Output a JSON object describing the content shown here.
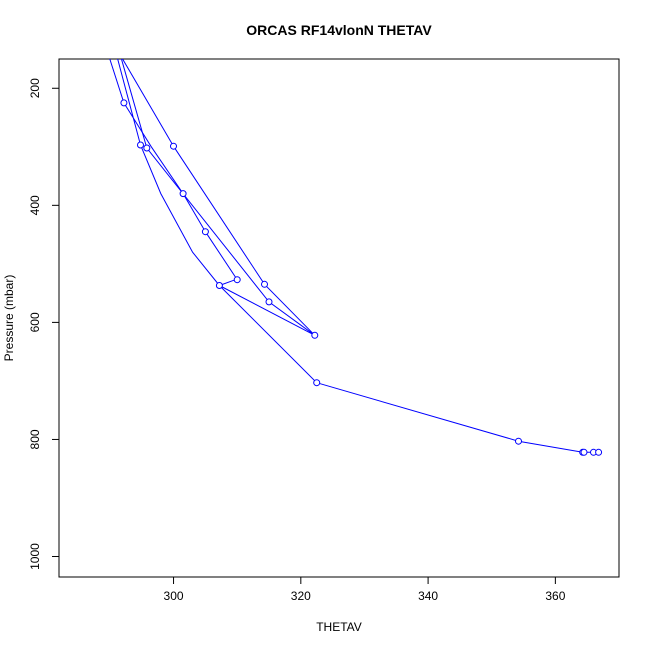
{
  "chart_data": {
    "type": "line",
    "title": "ORCAS RF14vlonN THETAV",
    "xlabel": "THETAV",
    "ylabel": "Pressure (mbar)",
    "xlim": [
      282,
      370
    ],
    "ylim": [
      1035,
      150
    ],
    "y_inverted": true,
    "grid": false,
    "legend": "none",
    "x_ticks": [
      300,
      320,
      340,
      360
    ],
    "y_ticks": [
      200,
      400,
      600,
      800,
      1000
    ],
    "series_color": "#0000ff",
    "series": [
      {
        "x": [
          288.5,
          292.2,
          296.5,
          301.5,
          305.0,
          310.0,
          309.5,
          307.2,
          303.0,
          298.0,
          294.8,
          290.0
        ],
        "y": [
          100,
          225,
          300,
          380,
          445,
          527,
          528,
          537,
          480,
          380,
          297,
          100
        ]
      },
      {
        "x": [
          290.5,
          295.8,
          315.0,
          322.2,
          314.3,
          300.0,
          292.0
        ],
        "y": [
          100,
          302,
          565,
          622,
          535,
          299,
          150
        ]
      },
      {
        "x": [
          322.2,
          307.2
        ],
        "y": [
          622,
          537
        ]
      },
      {
        "x": [
          322.5,
          354.2,
          364.3,
          364.5,
          366.0,
          366.8
        ],
        "y": [
          703,
          803,
          822,
          822,
          822,
          822
        ]
      },
      {
        "x": [
          307.2,
          322.5
        ],
        "y": [
          537,
          703
        ]
      }
    ],
    "points": {
      "x": [
        292.2,
        294.8,
        295.8,
        300.0,
        301.5,
        305.0,
        307.2,
        310.0,
        314.3,
        315.0,
        322.2,
        322.5,
        354.2,
        364.3,
        364.5,
        366.0,
        366.8
      ],
      "y": [
        225,
        297,
        302,
        299,
        380,
        445,
        537,
        527,
        535,
        565,
        622,
        703,
        803,
        822,
        822,
        822,
        822
      ]
    }
  }
}
